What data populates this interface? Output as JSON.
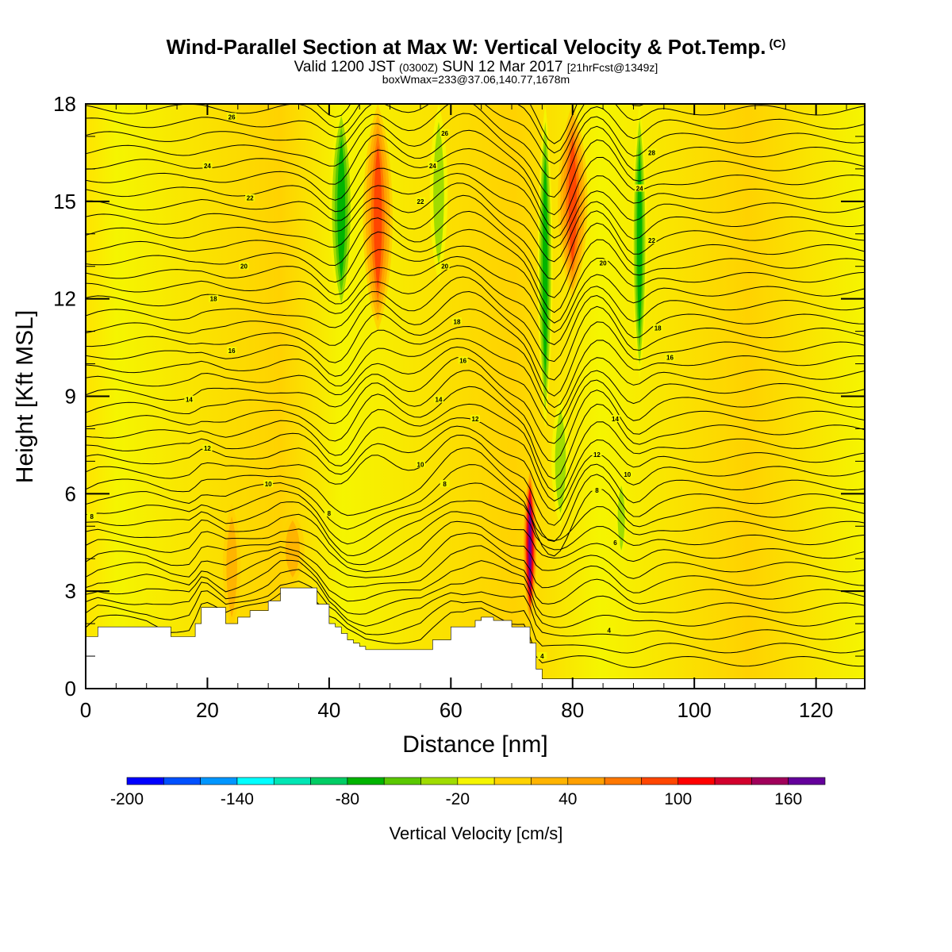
{
  "header": {
    "title": "Wind-Parallel Section at Max W: Vertical Velocity & Pot.Temp.",
    "copyright_mark": "(C)",
    "valid_prefix": "Valid 1200 JST",
    "valid_utc": "(0300Z)",
    "valid_date": "SUN 12 Mar 2017",
    "forecast_info": "[21hrFcst@1349z]",
    "box_info": "boxWmax=233@37.06,140.77,1678m"
  },
  "chart_data": {
    "type": "heatmap",
    "xlabel": "Distance [nm]",
    "ylabel": "Height [Kft MSL]",
    "xlim": [
      0,
      128
    ],
    "ylim": [
      0,
      18
    ],
    "x_ticks": [
      0,
      20,
      40,
      60,
      80,
      100,
      120
    ],
    "y_ticks": [
      0,
      3,
      6,
      9,
      12,
      15,
      18
    ],
    "colorbar": {
      "label": "Vertical Velocity [cm/s]",
      "range": [
        -200,
        180
      ],
      "step": 20,
      "tick_values": [
        -200,
        -140,
        -80,
        -20,
        40,
        100,
        160
      ],
      "colors": [
        "#0000ff",
        "#0050ff",
        "#0096ff",
        "#00ffff",
        "#00e6b4",
        "#00cd64",
        "#00b400",
        "#5ac800",
        "#a0dc00",
        "#f5f500",
        "#ffd200",
        "#ffb400",
        "#ffa000",
        "#ff7800",
        "#ff4600",
        "#ff0000",
        "#d2002d",
        "#a0005a",
        "#64009b"
      ]
    },
    "background_value": 0,
    "features": [
      {
        "kind": "updraft",
        "x": 24,
        "x_width": 3,
        "z_bottom": 1.8,
        "z_top": 5.7,
        "w_max": 30
      },
      {
        "kind": "updraft",
        "x": 34,
        "x_width": 4,
        "z_bottom": 3.2,
        "z_top": 5.4,
        "w_max": 30
      },
      {
        "kind": "updraft",
        "x": 48,
        "x_width": 5,
        "z_bottom": 11,
        "z_top": 18,
        "w_max": 100
      },
      {
        "kind": "updraft",
        "x": 73,
        "x_width": 2.4,
        "z_bottom": 2,
        "z_top": 6.8,
        "w_max": 180
      },
      {
        "kind": "updraft",
        "x": 80,
        "x_width": 5,
        "z_bottom": 12,
        "z_top": 18,
        "w_max": 100
      },
      {
        "kind": "downdraft",
        "x": 42,
        "x_width": 4,
        "z_bottom": 11.5,
        "z_top": 18,
        "w_min": -80
      },
      {
        "kind": "downdraft",
        "x": 58,
        "x_width": 3,
        "z_bottom": 12.5,
        "z_top": 18,
        "w_min": -40
      },
      {
        "kind": "downdraft",
        "x": 75.5,
        "x_width": 2.5,
        "z_bottom": 8,
        "z_top": 18,
        "w_min": -80
      },
      {
        "kind": "downdraft",
        "x": 91,
        "x_width": 2.5,
        "z_bottom": 9.5,
        "z_top": 18,
        "w_min": -80
      },
      {
        "kind": "downdraft",
        "x": 78,
        "x_width": 3,
        "z_bottom": 5,
        "z_top": 9,
        "w_min": -40
      },
      {
        "kind": "downdraft",
        "x": 88,
        "x_width": 2,
        "z_bottom": 4,
        "z_top": 6.5,
        "w_min": -40
      }
    ],
    "terrain": {
      "x": [
        0,
        2,
        10,
        14,
        17,
        18,
        19,
        20,
        23,
        25,
        27,
        30,
        32,
        35,
        38,
        40,
        41,
        42,
        43,
        44,
        45,
        46,
        48,
        55,
        57,
        60,
        62,
        64,
        65,
        67,
        70,
        72,
        73,
        74,
        75,
        76,
        80,
        85,
        95,
        105,
        115,
        128
      ],
      "height": [
        1.6,
        1.9,
        1.9,
        1.6,
        1.6,
        2.0,
        2.5,
        2.5,
        2.0,
        2.2,
        2.4,
        2.7,
        3.1,
        3.1,
        2.6,
        2.0,
        1.9,
        1.7,
        1.5,
        1.4,
        1.3,
        1.2,
        1.2,
        1.2,
        1.5,
        1.9,
        1.9,
        2.1,
        2.2,
        2.1,
        1.9,
        1.9,
        1.4,
        0.6,
        0.3,
        0.3,
        0.3,
        0.3,
        0.3,
        0.3,
        0.3,
        0.3
      ]
    },
    "isentrope_labels": [
      {
        "text": "26",
        "x": 24,
        "z": 17.6
      },
      {
        "text": "24",
        "x": 20,
        "z": 16.1
      },
      {
        "text": "22",
        "x": 27,
        "z": 15.1
      },
      {
        "text": "20",
        "x": 26,
        "z": 13.0
      },
      {
        "text": "18",
        "x": 21,
        "z": 12.0
      },
      {
        "text": "16",
        "x": 24,
        "z": 10.4
      },
      {
        "text": "14",
        "x": 17,
        "z": 8.9
      },
      {
        "text": "12",
        "x": 20,
        "z": 7.4
      },
      {
        "text": "10",
        "x": 30,
        "z": 6.3
      },
      {
        "text": "8",
        "x": 1,
        "z": 5.3
      },
      {
        "text": "8",
        "x": 40,
        "z": 5.4
      },
      {
        "text": "26",
        "x": 59,
        "z": 17.1
      },
      {
        "text": "24",
        "x": 57,
        "z": 16.1
      },
      {
        "text": "22",
        "x": 55,
        "z": 15.0
      },
      {
        "text": "20",
        "x": 59,
        "z": 13.0
      },
      {
        "text": "18",
        "x": 61,
        "z": 11.3
      },
      {
        "text": "16",
        "x": 62,
        "z": 10.1
      },
      {
        "text": "14",
        "x": 58,
        "z": 8.9
      },
      {
        "text": "12",
        "x": 64,
        "z": 8.3
      },
      {
        "text": "10",
        "x": 55,
        "z": 6.9
      },
      {
        "text": "8",
        "x": 59,
        "z": 6.3
      },
      {
        "text": "28",
        "x": 93,
        "z": 16.5
      },
      {
        "text": "24",
        "x": 91,
        "z": 15.4
      },
      {
        "text": "22",
        "x": 93,
        "z": 13.8
      },
      {
        "text": "20",
        "x": 85,
        "z": 13.1
      },
      {
        "text": "18",
        "x": 94,
        "z": 11.1
      },
      {
        "text": "16",
        "x": 96,
        "z": 10.2
      },
      {
        "text": "14",
        "x": 87,
        "z": 8.3
      },
      {
        "text": "12",
        "x": 84,
        "z": 7.2
      },
      {
        "text": "10",
        "x": 89,
        "z": 6.6
      },
      {
        "text": "8",
        "x": 84,
        "z": 6.1
      },
      {
        "text": "6",
        "x": 87,
        "z": 4.5
      },
      {
        "text": "4",
        "x": 86,
        "z": 1.8
      },
      {
        "text": "4",
        "x": 75,
        "z": 1.0
      }
    ]
  }
}
